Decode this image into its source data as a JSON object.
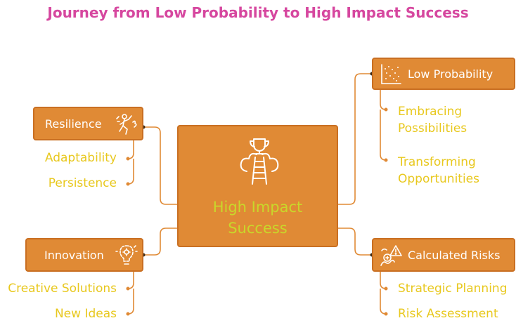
{
  "title": "Journey from Low Probability to High Impact Success",
  "center": {
    "line1": "High Impact",
    "line2": "Success",
    "icon": "trophy-ladder-icon"
  },
  "branches": {
    "resilience": {
      "label": "Resilience",
      "icon": "climbing-person-icon",
      "items": [
        "Adaptability",
        "Persistence"
      ]
    },
    "innovation": {
      "label": "Innovation",
      "icon": "lightbulb-gear-icon",
      "items": [
        "Creative Solutions",
        "New Ideas"
      ]
    },
    "low_probability": {
      "label": "Low Probability",
      "icon": "scatter-plot-icon",
      "items": [
        "Embracing Possibilities",
        "Transforming Opportunities"
      ]
    },
    "calculated_risks": {
      "label": "Calculated Risks",
      "icon": "risk-warning-icon",
      "items": [
        "Strategic Planning",
        "Risk Assessment"
      ]
    }
  },
  "colors": {
    "title": "#d6479f",
    "node_fill": "#e08a35",
    "node_border": "#c96f22",
    "connector": "#e08a35",
    "leaf_text": "#e8c81e",
    "center_text": "#c9d72a",
    "icon": "#ffffff"
  }
}
